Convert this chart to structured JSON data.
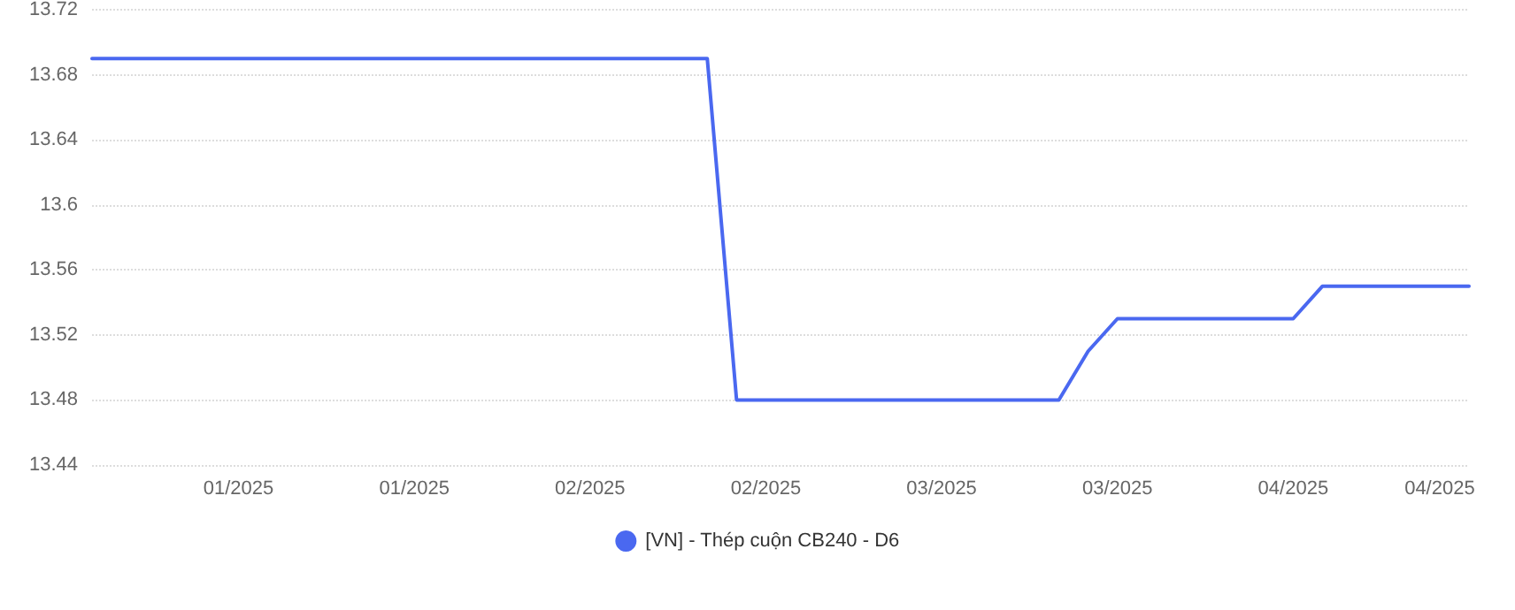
{
  "chart_data": {
    "type": "line",
    "categories": [
      null,
      null,
      null,
      null,
      null,
      "01/2025",
      null,
      null,
      null,
      null,
      null,
      "01/2025",
      null,
      null,
      null,
      null,
      null,
      "02/2025",
      null,
      null,
      null,
      null,
      null,
      "02/2025",
      null,
      null,
      null,
      null,
      null,
      "03/2025",
      null,
      null,
      null,
      null,
      null,
      "03/2025",
      null,
      null,
      null,
      null,
      null,
      "04/2025",
      null,
      null,
      null,
      null,
      "04/2025",
      null
    ],
    "series": [
      {
        "name": "[VN] - Thép cuộn CB240 - D6",
        "color": "#4a68f0",
        "values": [
          13.69,
          13.69,
          13.69,
          13.69,
          13.69,
          13.69,
          13.69,
          13.69,
          13.69,
          13.69,
          13.69,
          13.69,
          13.69,
          13.69,
          13.69,
          13.69,
          13.69,
          13.69,
          13.69,
          13.69,
          13.69,
          13.69,
          13.48,
          13.48,
          13.48,
          13.48,
          13.48,
          13.48,
          13.48,
          13.48,
          13.48,
          13.48,
          13.48,
          13.48,
          13.51,
          13.53,
          13.53,
          13.53,
          13.53,
          13.53,
          13.53,
          13.53,
          13.55,
          13.55,
          13.55,
          13.55,
          13.55,
          13.55
        ]
      }
    ],
    "ylim": [
      13.44,
      13.72
    ],
    "yticks": [
      13.44,
      13.48,
      13.52,
      13.56,
      13.6,
      13.64,
      13.68,
      13.72
    ],
    "grid": "y",
    "legend": "bottom",
    "marker": "none",
    "line_style": "solid"
  }
}
